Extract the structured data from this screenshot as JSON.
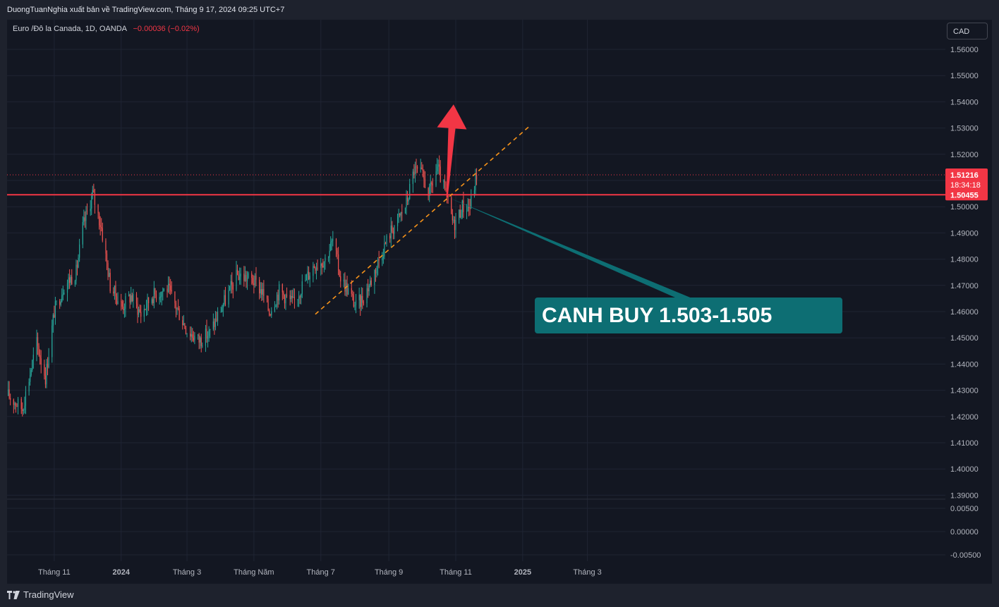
{
  "header": {
    "publish_line": "DuongTuanNghia xuất bản về TradingView.com, Tháng 9 17, 2024 09:25 UTC+7"
  },
  "legend": {
    "symbol": "Euro /Đô la Canada, 1D, OANDA",
    "change": "−0.00036 (−0.02%)"
  },
  "currency_button": "CAD",
  "footer": {
    "logo_text": "TradingView"
  },
  "colors": {
    "up": "#26a69a",
    "down": "#ef5350",
    "background": "#131722",
    "grid": "#1f2433",
    "resistance": "#f23645",
    "trendline": "#f7931a",
    "callout": "#0d6e73",
    "arrow": "#f23645"
  },
  "price_tag": {
    "last_price": "1.51216",
    "countdown": "18:34:18",
    "level_label": "1.50455"
  },
  "annotation": {
    "text": "CANH BUY 1.503-1.505"
  },
  "chart_data": {
    "type": "candlestick",
    "y_ticks": [
      "1.56000",
      "1.55000",
      "1.54000",
      "1.53000",
      "1.52000",
      "1.51000",
      "1.50000",
      "1.49000",
      "1.48000",
      "1.47000",
      "1.46000",
      "1.45000",
      "1.44000",
      "1.43000",
      "1.42000",
      "1.41000",
      "1.40000",
      "1.39000"
    ],
    "ylim": [
      1.388,
      1.565
    ],
    "indicator_ticks": [
      "0.00500",
      "0.00000",
      "-0.00500"
    ],
    "x_ticks": [
      "Tháng 11",
      "2024",
      "Tháng 3",
      "Tháng Năm",
      "Tháng 7",
      "Tháng 9",
      "Tháng 11",
      "2025",
      "Tháng 3"
    ],
    "horizontal_level": 1.50455,
    "last_price": 1.51216,
    "trendline": {
      "from": [
        "2024-06-26",
        1.459
      ],
      "to": [
        "2025-01-08",
        1.531
      ]
    },
    "target_arrow": {
      "from": [
        "2024-10-24",
        1.5035
      ],
      "to": [
        "2024-10-30",
        1.539
      ]
    },
    "pattern_waypoints": [
      [
        "2023-09-20",
        1.428
      ],
      [
        "2023-10-03",
        1.423
      ],
      [
        "2023-10-16",
        1.448
      ],
      [
        "2023-10-24",
        1.435
      ],
      [
        "2023-11-01",
        1.46
      ],
      [
        "2023-11-10",
        1.47
      ],
      [
        "2023-11-21",
        1.475
      ],
      [
        "2023-11-27",
        1.492
      ],
      [
        "2023-12-06",
        1.505
      ],
      [
        "2023-12-14",
        1.492
      ],
      [
        "2023-12-22",
        1.47
      ],
      [
        "2024-01-02",
        1.462
      ],
      [
        "2024-01-10",
        1.466
      ],
      [
        "2024-01-19",
        1.459
      ],
      [
        "2024-01-29",
        1.466
      ],
      [
        "2024-02-12",
        1.469
      ],
      [
        "2024-02-20",
        1.462
      ],
      [
        "2024-03-01",
        1.453
      ],
      [
        "2024-03-12",
        1.449
      ],
      [
        "2024-03-22",
        1.452
      ],
      [
        "2024-04-02",
        1.462
      ],
      [
        "2024-04-16",
        1.474
      ],
      [
        "2024-04-30",
        1.472
      ],
      [
        "2024-05-08",
        1.468
      ],
      [
        "2024-05-15",
        1.46
      ],
      [
        "2024-05-24",
        1.468
      ],
      [
        "2024-06-06",
        1.463
      ],
      [
        "2024-06-14",
        1.47
      ],
      [
        "2024-06-25",
        1.478
      ],
      [
        "2024-07-05",
        1.48
      ],
      [
        "2024-07-12",
        1.487
      ],
      [
        "2024-07-19",
        1.473
      ],
      [
        "2024-07-26",
        1.468
      ],
      [
        "2024-08-02",
        1.462
      ],
      [
        "2024-08-08",
        1.465
      ],
      [
        "2024-08-16",
        1.472
      ],
      [
        "2024-08-23",
        1.48
      ],
      [
        "2024-09-02",
        1.49
      ],
      [
        "2024-09-12",
        1.497
      ],
      [
        "2024-09-17",
        1.5012
      ],
      [
        "2024-09-24",
        1.514
      ],
      [
        "2024-10-01",
        1.512
      ],
      [
        "2024-10-08",
        1.505
      ],
      [
        "2024-10-15",
        1.515
      ],
      [
        "2024-10-22",
        1.506
      ],
      [
        "2024-10-30",
        1.493
      ],
      [
        "2024-11-07",
        1.5
      ],
      [
        "2024-11-14",
        1.5
      ],
      [
        "2024-11-20",
        1.5122
      ]
    ]
  }
}
